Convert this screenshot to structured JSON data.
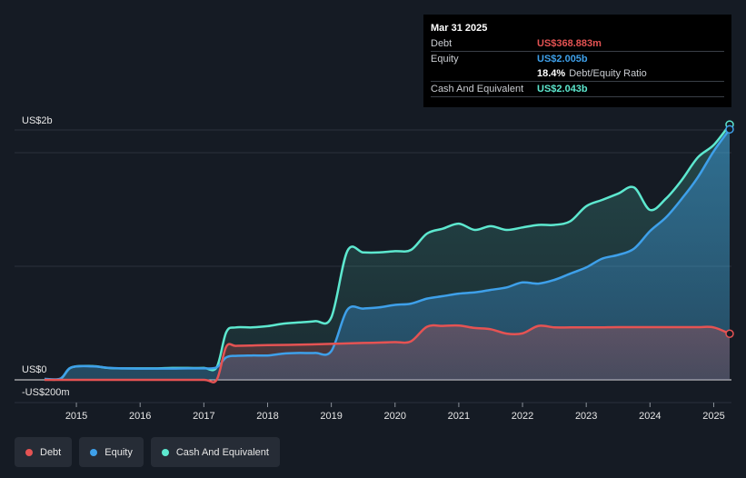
{
  "tooltip": {
    "date": "Mar 31 2025",
    "rows": [
      {
        "label": "Debt",
        "value": "US$368.883m",
        "color": "#e55353"
      },
      {
        "label": "Equity",
        "value": "US$2.005b",
        "color": "#3ea0ea"
      },
      {
        "ratio_value": "18.4%",
        "ratio_label": "Debt/Equity Ratio"
      },
      {
        "label": "Cash And Equivalent",
        "value": "US$2.043b",
        "color": "#5de8cf"
      }
    ]
  },
  "legend": [
    {
      "label": "Debt",
      "color": "#e55353"
    },
    {
      "label": "Equity",
      "color": "#3ea0ea"
    },
    {
      "label": "Cash And Equivalent",
      "color": "#5de8cf"
    }
  ],
  "chart_data": {
    "type": "area",
    "title": "",
    "xlabel": "",
    "ylabel": "",
    "y_tick_labels": [
      {
        "value": 2000,
        "label": "US$2b"
      },
      {
        "value": 0,
        "label": "US$0"
      },
      {
        "value": -200,
        "label": "-US$200m"
      }
    ],
    "x_ticks": [
      2015,
      2016,
      2017,
      2018,
      2019,
      2020,
      2021,
      2022,
      2023,
      2024,
      2025
    ],
    "xlim": [
      2014.5,
      2025.25
    ],
    "ylim": [
      -200,
      2000
    ],
    "unit": "US$ millions",
    "grid": true,
    "legend_position": "bottom-left",
    "series": [
      {
        "name": "Cash And Equivalent",
        "color": "#5de8cf",
        "points": [
          [
            2014.5,
            5
          ],
          [
            2014.75,
            8
          ],
          [
            2014.92,
            100
          ],
          [
            2015.25,
            110
          ],
          [
            2015.5,
            95
          ],
          [
            2015.75,
            92
          ],
          [
            2016.0,
            92
          ],
          [
            2016.25,
            92
          ],
          [
            2016.5,
            95
          ],
          [
            2016.75,
            95
          ],
          [
            2017.0,
            95
          ],
          [
            2017.2,
            100
          ],
          [
            2017.35,
            380
          ],
          [
            2017.5,
            420
          ],
          [
            2017.75,
            420
          ],
          [
            2018.0,
            430
          ],
          [
            2018.25,
            450
          ],
          [
            2018.5,
            460
          ],
          [
            2018.75,
            470
          ],
          [
            2019.0,
            500
          ],
          [
            2019.25,
            1030
          ],
          [
            2019.5,
            1020
          ],
          [
            2019.75,
            1020
          ],
          [
            2020.0,
            1030
          ],
          [
            2020.25,
            1040
          ],
          [
            2020.5,
            1170
          ],
          [
            2020.75,
            1210
          ],
          [
            2021.0,
            1250
          ],
          [
            2021.25,
            1200
          ],
          [
            2021.5,
            1230
          ],
          [
            2021.75,
            1200
          ],
          [
            2022.0,
            1220
          ],
          [
            2022.25,
            1240
          ],
          [
            2022.5,
            1240
          ],
          [
            2022.75,
            1270
          ],
          [
            2023.0,
            1390
          ],
          [
            2023.25,
            1440
          ],
          [
            2023.5,
            1490
          ],
          [
            2023.75,
            1540
          ],
          [
            2024.0,
            1360
          ],
          [
            2024.25,
            1450
          ],
          [
            2024.5,
            1600
          ],
          [
            2024.75,
            1780
          ],
          [
            2025.0,
            1880
          ],
          [
            2025.25,
            2043
          ]
        ]
      },
      {
        "name": "Equity",
        "color": "#3ea0ea",
        "points": [
          [
            2014.5,
            8
          ],
          [
            2014.75,
            10
          ],
          [
            2014.92,
            100
          ],
          [
            2015.25,
            108
          ],
          [
            2015.5,
            96
          ],
          [
            2015.75,
            92
          ],
          [
            2016.0,
            90
          ],
          [
            2016.25,
            90
          ],
          [
            2016.5,
            90
          ],
          [
            2016.75,
            92
          ],
          [
            2017.0,
            92
          ],
          [
            2017.2,
            100
          ],
          [
            2017.35,
            180
          ],
          [
            2017.5,
            192
          ],
          [
            2017.75,
            195
          ],
          [
            2018.0,
            195
          ],
          [
            2018.25,
            210
          ],
          [
            2018.5,
            215
          ],
          [
            2018.75,
            215
          ],
          [
            2019.0,
            230
          ],
          [
            2019.25,
            560
          ],
          [
            2019.5,
            570
          ],
          [
            2019.75,
            580
          ],
          [
            2020.0,
            600
          ],
          [
            2020.25,
            610
          ],
          [
            2020.5,
            650
          ],
          [
            2020.75,
            670
          ],
          [
            2021.0,
            690
          ],
          [
            2021.25,
            700
          ],
          [
            2021.5,
            720
          ],
          [
            2021.75,
            740
          ],
          [
            2022.0,
            780
          ],
          [
            2022.25,
            770
          ],
          [
            2022.5,
            800
          ],
          [
            2022.75,
            850
          ],
          [
            2023.0,
            900
          ],
          [
            2023.25,
            970
          ],
          [
            2023.5,
            1000
          ],
          [
            2023.75,
            1050
          ],
          [
            2024.0,
            1190
          ],
          [
            2024.25,
            1300
          ],
          [
            2024.5,
            1450
          ],
          [
            2024.75,
            1620
          ],
          [
            2025.0,
            1830
          ],
          [
            2025.25,
            2005
          ]
        ]
      },
      {
        "name": "Debt",
        "color": "#e55353",
        "points": [
          [
            2014.5,
            0
          ],
          [
            2015.0,
            0
          ],
          [
            2015.5,
            0
          ],
          [
            2016.0,
            0
          ],
          [
            2016.5,
            0
          ],
          [
            2017.0,
            0
          ],
          [
            2017.2,
            0
          ],
          [
            2017.35,
            265
          ],
          [
            2017.5,
            272
          ],
          [
            2017.75,
            275
          ],
          [
            2018.0,
            278
          ],
          [
            2018.5,
            282
          ],
          [
            2019.0,
            288
          ],
          [
            2019.25,
            292
          ],
          [
            2019.5,
            295
          ],
          [
            2019.75,
            298
          ],
          [
            2020.0,
            302
          ],
          [
            2020.25,
            308
          ],
          [
            2020.5,
            425
          ],
          [
            2020.75,
            432
          ],
          [
            2021.0,
            435
          ],
          [
            2021.25,
            415
          ],
          [
            2021.5,
            405
          ],
          [
            2021.75,
            370
          ],
          [
            2022.0,
            372
          ],
          [
            2022.25,
            432
          ],
          [
            2022.5,
            420
          ],
          [
            2022.75,
            420
          ],
          [
            2023.0,
            420
          ],
          [
            2023.25,
            420
          ],
          [
            2023.5,
            422
          ],
          [
            2023.75,
            422
          ],
          [
            2024.0,
            422
          ],
          [
            2024.25,
            422
          ],
          [
            2024.5,
            422
          ],
          [
            2024.75,
            422
          ],
          [
            2025.0,
            420
          ],
          [
            2025.25,
            369
          ]
        ]
      }
    ]
  }
}
